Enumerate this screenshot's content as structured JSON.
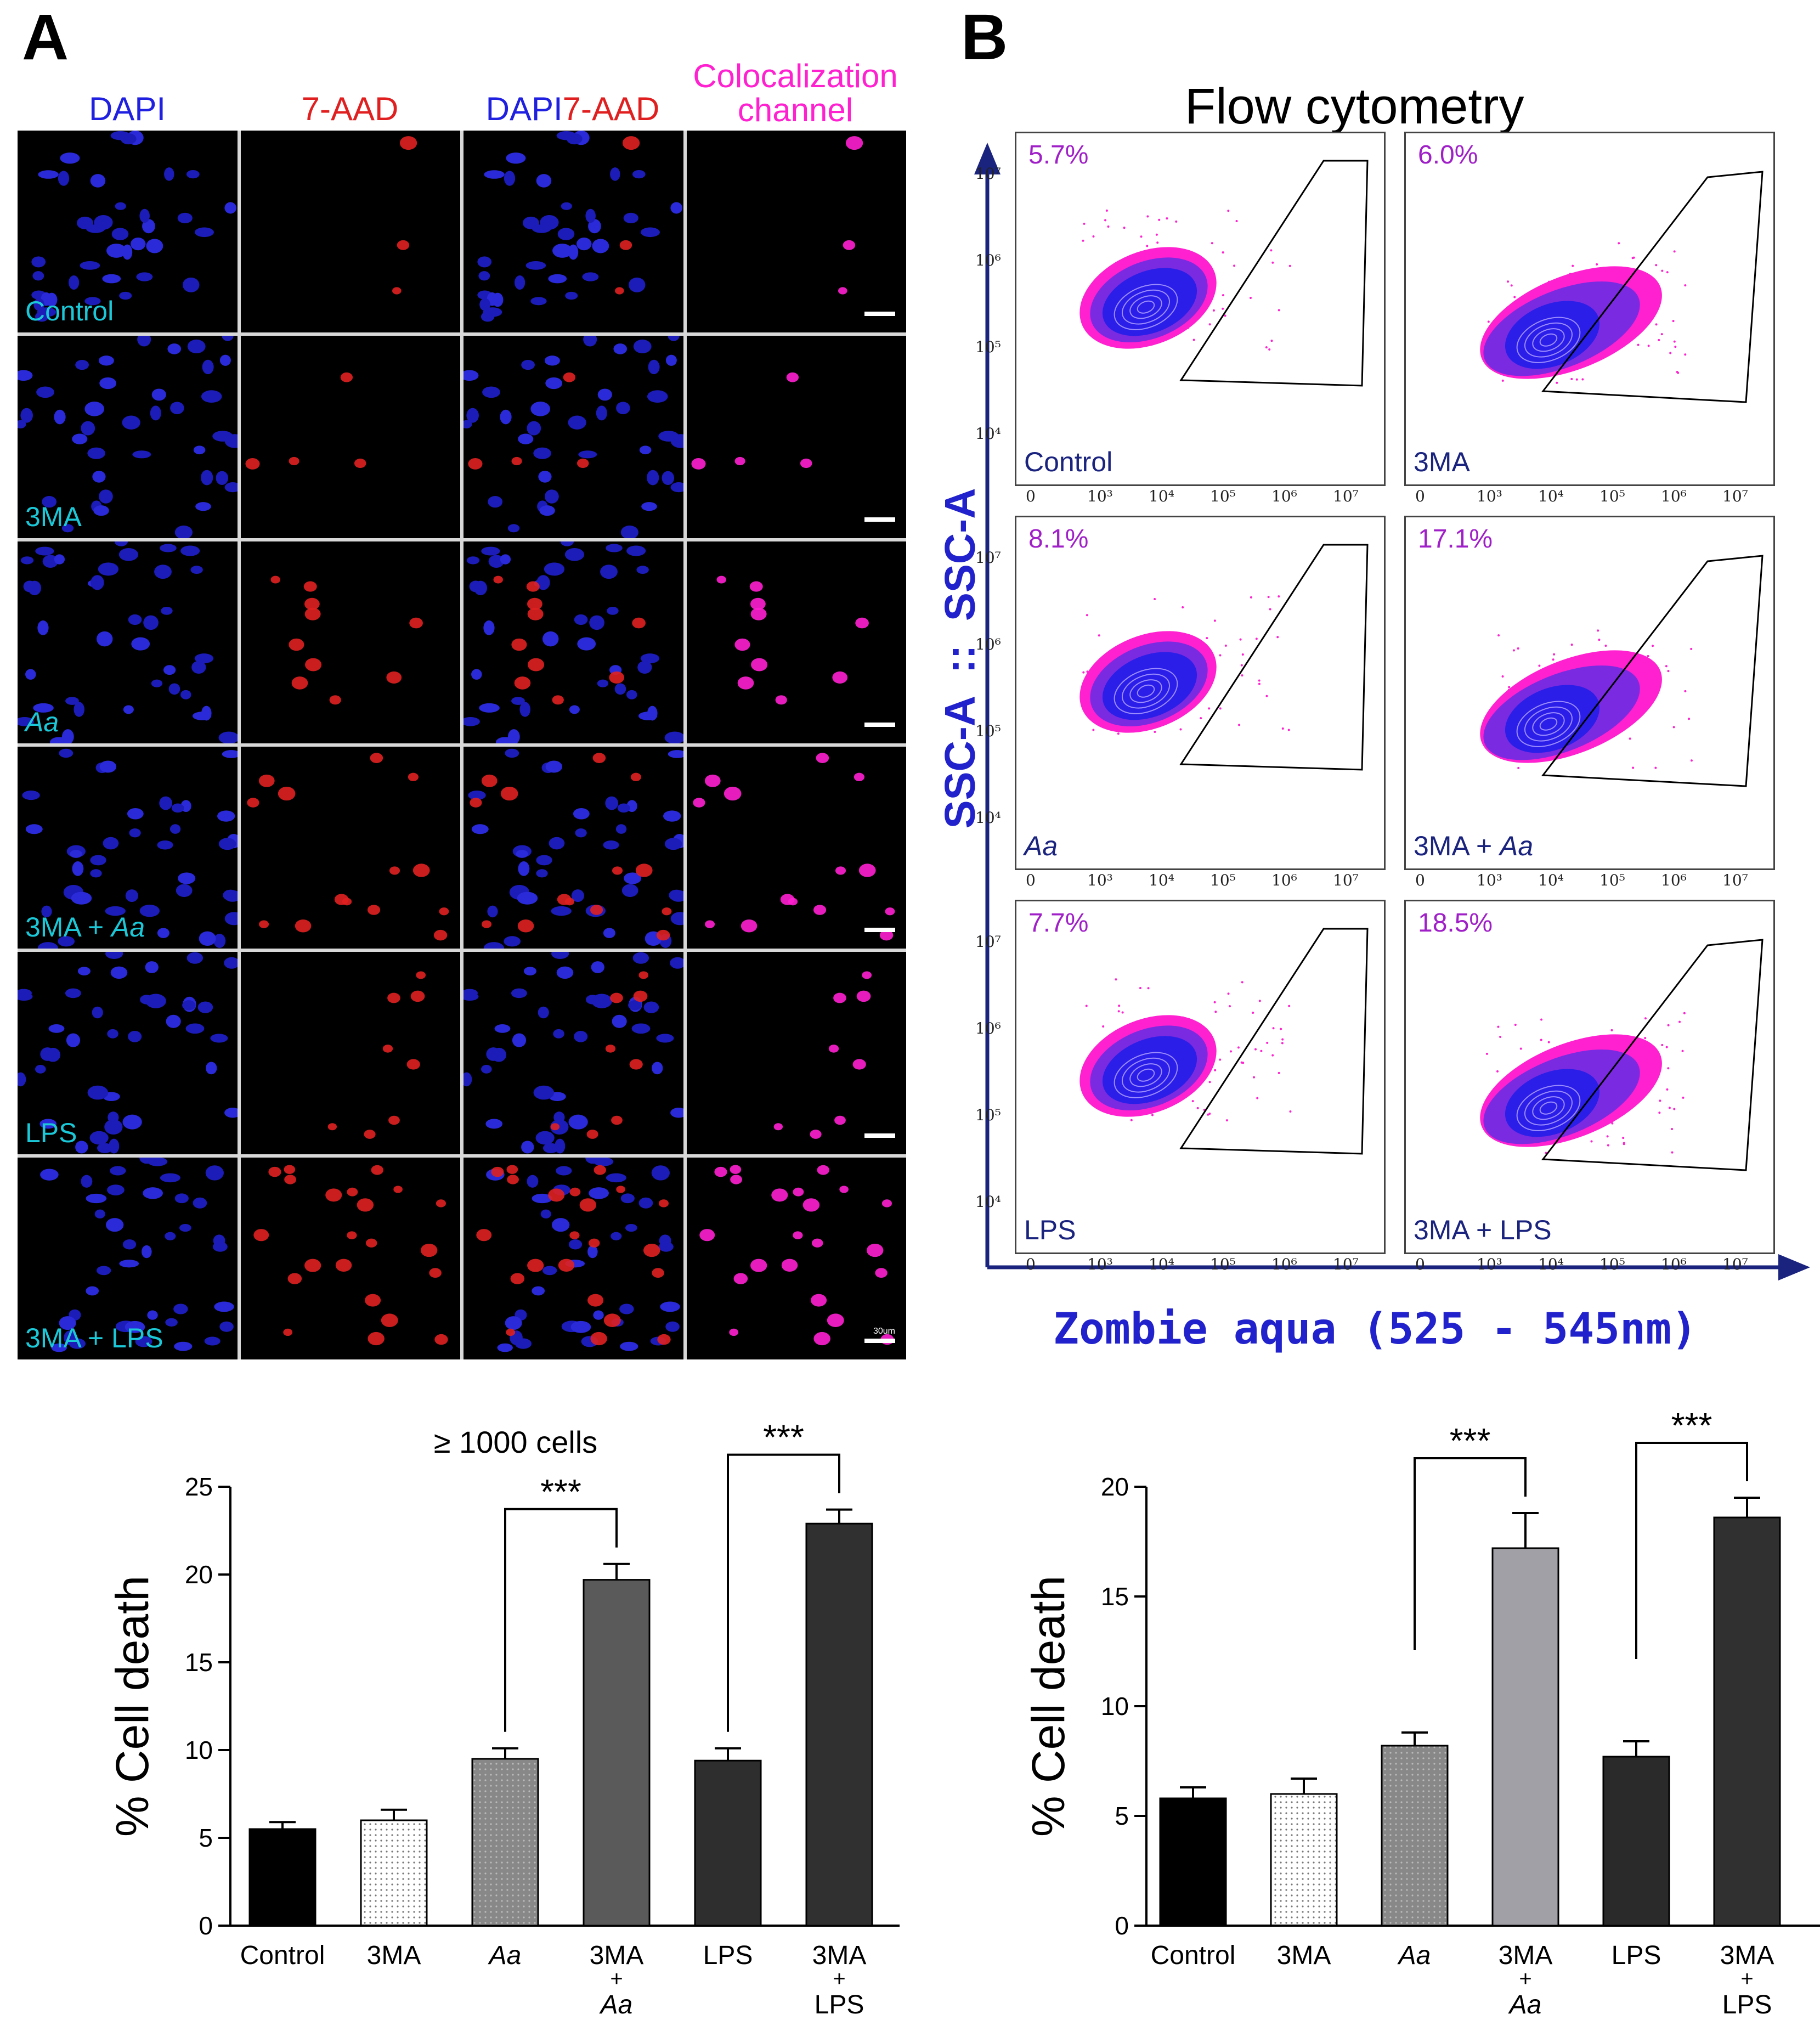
{
  "panel_a": {
    "letter": "A",
    "columns": [
      "DAPI",
      "7-AAD",
      "DAPI",
      "7-AAD",
      "Colocalization",
      "channel"
    ],
    "rows": [
      {
        "label": "Control",
        "italic": ""
      },
      {
        "label": "3MA",
        "italic": ""
      },
      {
        "label": "",
        "italic": "Aa"
      },
      {
        "label": "3MA + ",
        "italic": "Aa"
      },
      {
        "label": "LPS",
        "italic": ""
      },
      {
        "label": "3MA + LPS",
        "italic": ""
      }
    ],
    "scale_label": "30um"
  },
  "panel_b": {
    "letter": "B",
    "title": "Flow cytometry",
    "y_axis_label": "SSC-A  ::  SSC-A",
    "x_axis_label": "Zombie aqua (525 - 545nm)",
    "plots": [
      {
        "pct": "5.7%",
        "label": "Control",
        "italic": ""
      },
      {
        "pct": "6.0%",
        "label": "3MA",
        "italic": ""
      },
      {
        "pct": "8.1%",
        "label": "",
        "italic": "Aa"
      },
      {
        "pct": "17.1%",
        "label": "3MA + ",
        "italic": "Aa"
      },
      {
        "pct": "7.7%",
        "label": "LPS",
        "italic": ""
      },
      {
        "pct": "18.5%",
        "label": "3MA + LPS",
        "italic": ""
      }
    ],
    "x_ticks": [
      "0",
      "10³",
      "10⁴",
      "10⁵",
      "10⁶",
      "10⁷"
    ],
    "y_ticks": [
      "10⁷",
      "10⁶",
      "10⁵",
      "10⁴"
    ]
  },
  "colors": {
    "dapi": "#2020e0",
    "aad": "#e02020",
    "coloc": "#ff20d0",
    "row_label": "#1bc8d8",
    "pct": "#a020c8",
    "axis_blue": "#1a237e"
  },
  "chart_data": [
    {
      "type": "bar",
      "title": "≥ 1000 cells",
      "xlabel": "",
      "ylabel": "% Cell death",
      "categories": [
        "Control",
        "3MA",
        "Aa",
        "3MA + Aa",
        "LPS",
        "3MA + LPS"
      ],
      "values": [
        5.5,
        6.0,
        9.5,
        19.7,
        9.4,
        22.9
      ],
      "errors": [
        0.4,
        0.6,
        0.6,
        0.9,
        0.7,
        0.8
      ],
      "ylim": [
        0,
        25
      ],
      "yticks": [
        0,
        5,
        10,
        15,
        20,
        25
      ],
      "significance": [
        {
          "from": 2,
          "to": 3,
          "label": "***"
        },
        {
          "from": 4,
          "to": 5,
          "label": "***"
        }
      ]
    },
    {
      "type": "bar",
      "title": "",
      "xlabel": "",
      "ylabel": "% Cell death",
      "categories": [
        "Control",
        "3MA",
        "Aa",
        "3MA + Aa",
        "LPS",
        "3MA + LPS"
      ],
      "values": [
        5.8,
        6.0,
        8.2,
        17.2,
        7.7,
        18.6
      ],
      "errors": [
        0.5,
        0.7,
        0.6,
        1.6,
        0.7,
        0.9
      ],
      "ylim": [
        0,
        20
      ],
      "yticks": [
        0,
        5,
        10,
        15,
        20
      ],
      "significance": [
        {
          "from": 2,
          "to": 3,
          "label": "***"
        },
        {
          "from": 4,
          "to": 5,
          "label": "***"
        }
      ]
    }
  ]
}
